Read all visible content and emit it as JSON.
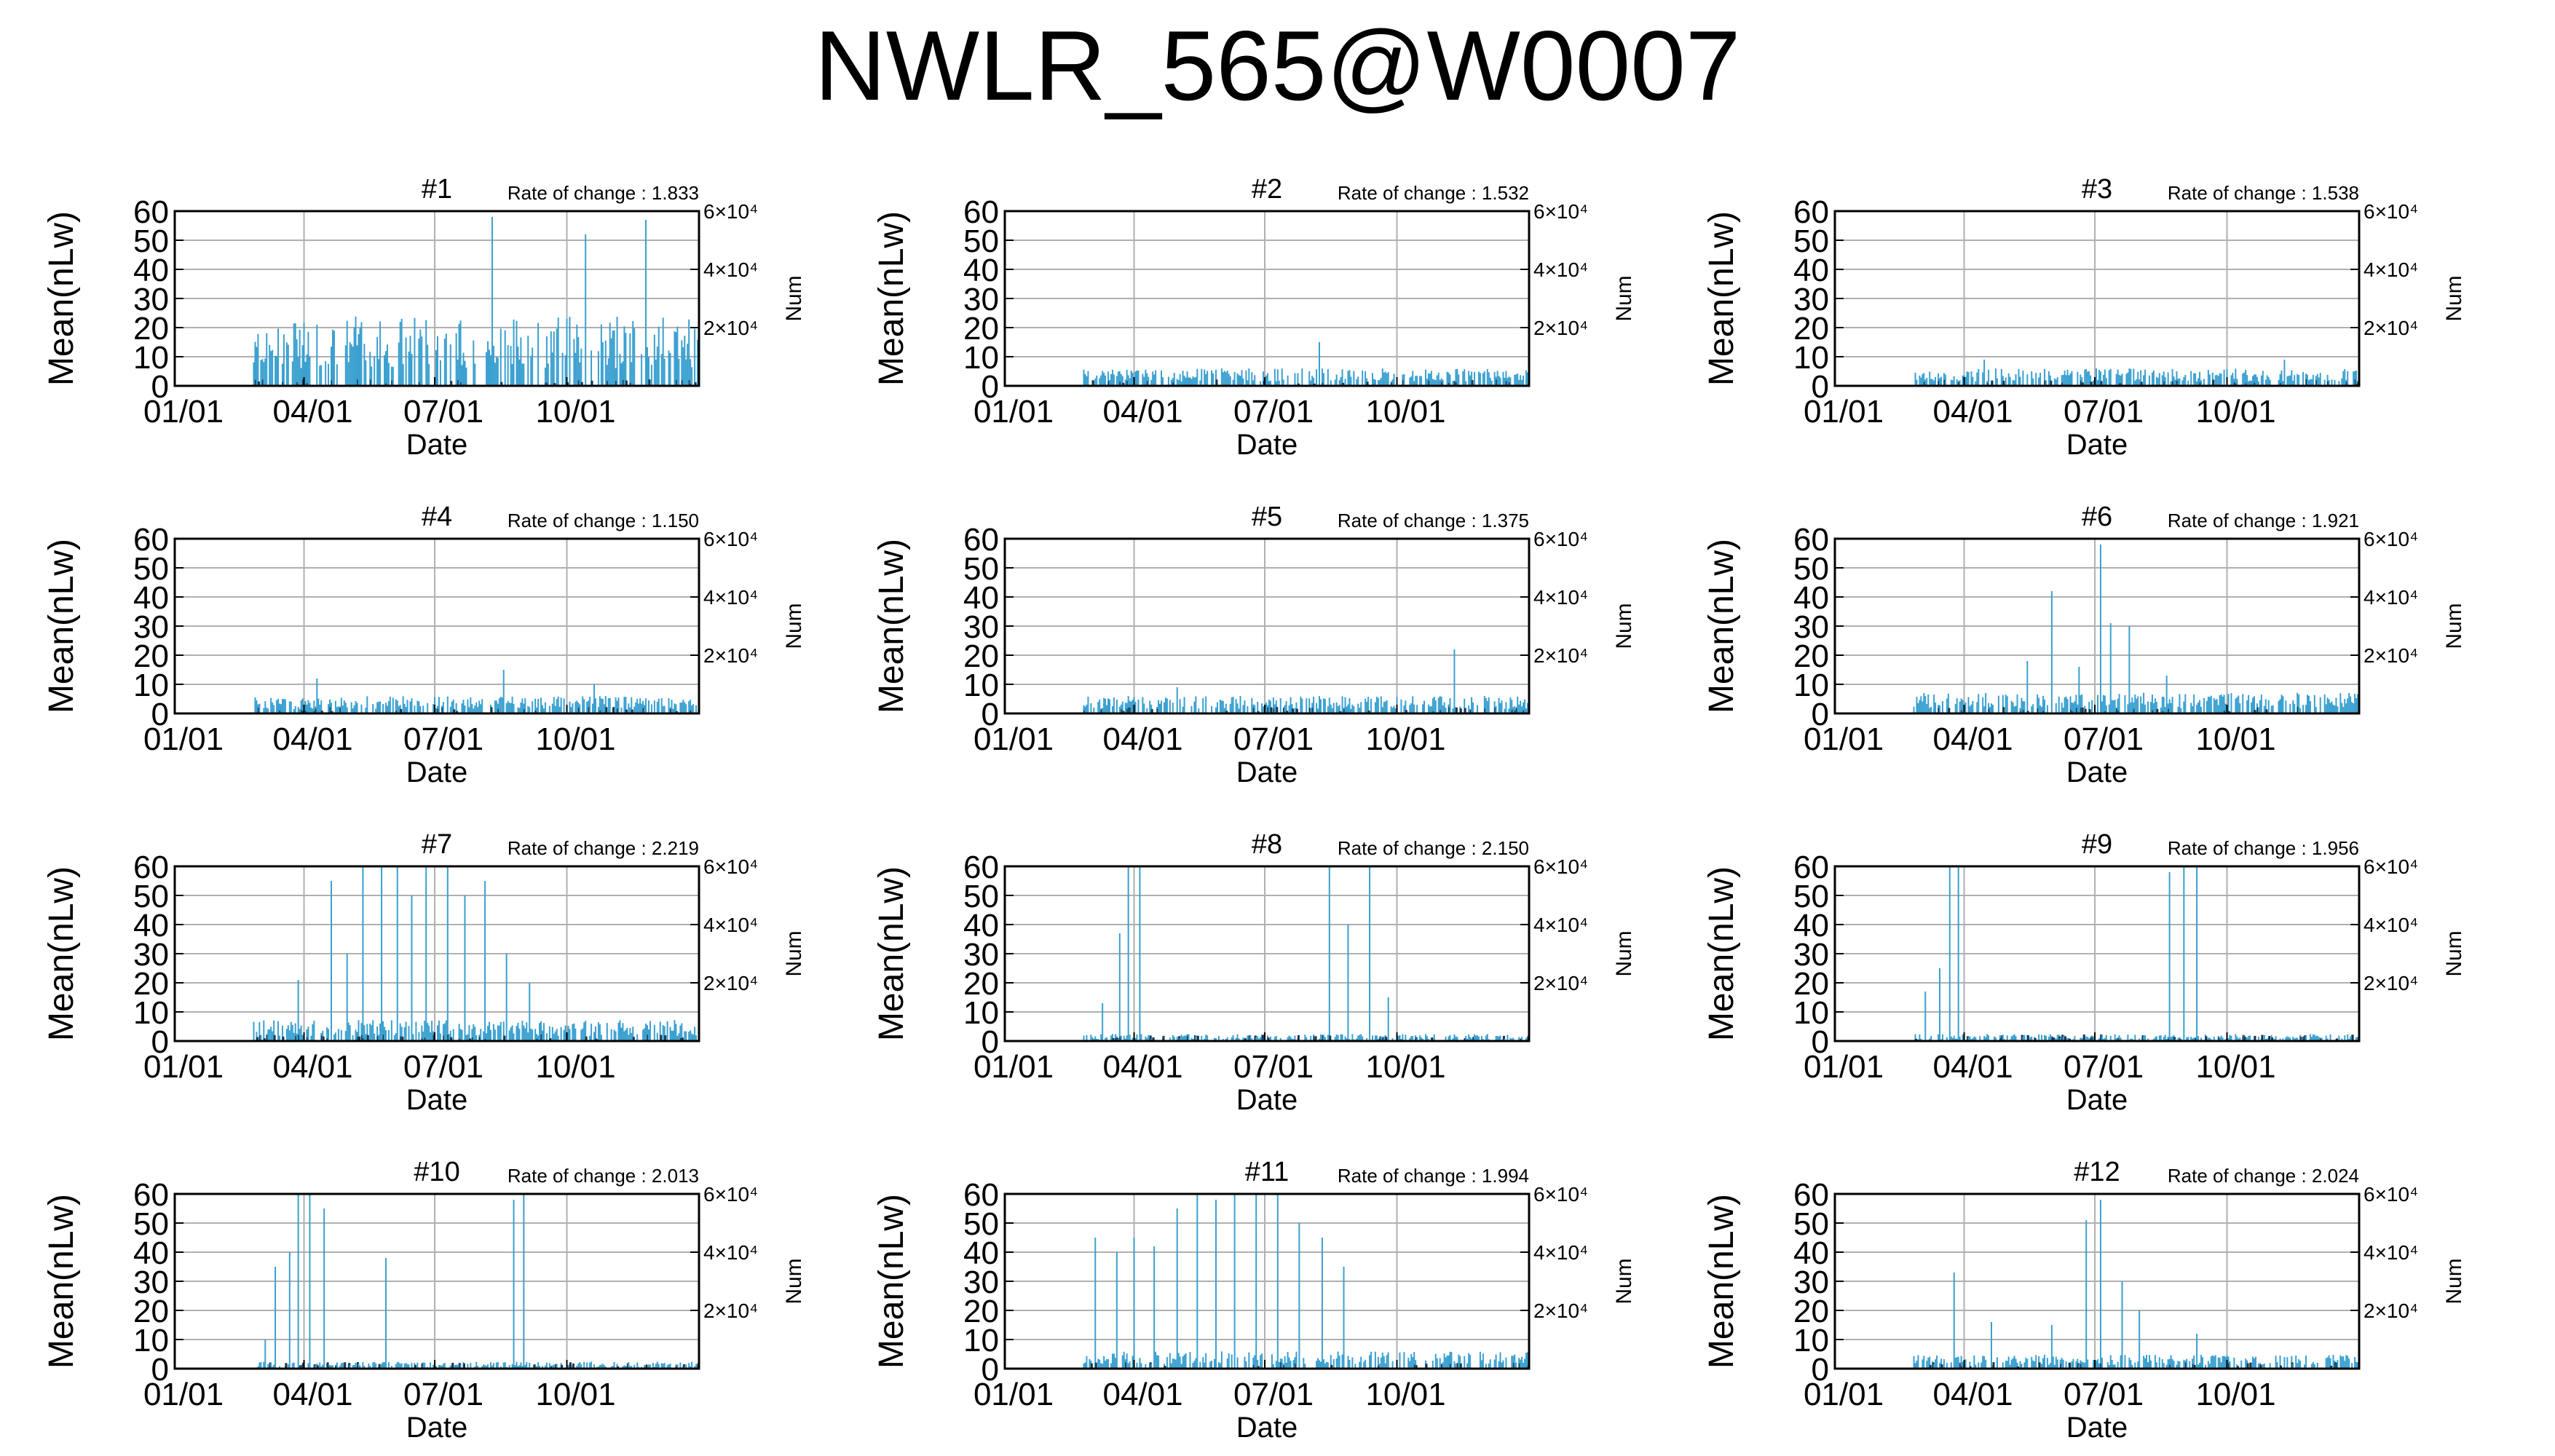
{
  "title": "NWLR_565@W0007",
  "chart_data": [
    {
      "type": "bar",
      "title": "#1",
      "rate_of_change": "Rate of change : 1.833",
      "xlabel": "Date",
      "ylabel": "Mean(nLw)",
      "ylabel_right": "Num",
      "x_ticks": [
        "01/01",
        "04/01",
        "07/01",
        "10/01"
      ],
      "y_ticks": [
        0,
        10,
        20,
        30,
        40,
        50,
        60
      ],
      "ylim": [
        0,
        60
      ],
      "right_ticks": [
        "2×10⁴",
        "4×10⁴",
        "6×10⁴"
      ],
      "grid": true,
      "data_start": "2021-02-25",
      "data_end": "2021-12-31",
      "typical_value": 20,
      "peaks": [
        {
          "date": "2021-08-10",
          "value": 58
        },
        {
          "date": "2021-10-14",
          "value": 52
        },
        {
          "date": "2021-11-25",
          "value": 57
        }
      ]
    },
    {
      "type": "bar",
      "title": "#2",
      "rate_of_change": "Rate of change : 1.532",
      "xlabel": "Date",
      "ylabel": "Mean(nLw)",
      "ylabel_right": "Num",
      "x_ticks": [
        "01/01",
        "04/01",
        "07/01",
        "10/01"
      ],
      "y_ticks": [
        0,
        10,
        20,
        30,
        40,
        50,
        60
      ],
      "ylim": [
        0,
        60
      ],
      "right_ticks": [
        "2×10⁴",
        "4×10⁴",
        "6×10⁴"
      ],
      "grid": true,
      "data_start": "2021-02-25",
      "data_end": "2021-12-31",
      "typical_value": 5,
      "peaks": [
        {
          "date": "2021-08-08",
          "value": 15
        }
      ]
    },
    {
      "type": "bar",
      "title": "#3",
      "rate_of_change": "Rate of change : 1.538",
      "xlabel": "Date",
      "ylabel": "Mean(nLw)",
      "ylabel_right": "Num",
      "x_ticks": [
        "01/01",
        "04/01",
        "07/01",
        "10/01"
      ],
      "y_ticks": [
        0,
        10,
        20,
        30,
        40,
        50,
        60
      ],
      "ylim": [
        0,
        60
      ],
      "right_ticks": [
        "2×10⁴",
        "4×10⁴",
        "6×10⁴"
      ],
      "grid": true,
      "data_start": "2021-02-25",
      "data_end": "2021-12-31",
      "typical_value": 5,
      "peaks": [
        {
          "date": "2021-04-15",
          "value": 9
        },
        {
          "date": "2021-11-10",
          "value": 9
        }
      ]
    },
    {
      "type": "bar",
      "title": "#4",
      "rate_of_change": "Rate of change : 1.150",
      "xlabel": "Date",
      "ylabel": "Mean(nLw)",
      "ylabel_right": "Num",
      "x_ticks": [
        "01/01",
        "04/01",
        "07/01",
        "10/01"
      ],
      "y_ticks": [
        0,
        10,
        20,
        30,
        40,
        50,
        60
      ],
      "ylim": [
        0,
        60
      ],
      "right_ticks": [
        "2×10⁴",
        "4×10⁴",
        "6×10⁴"
      ],
      "grid": true,
      "data_start": "2021-02-25",
      "data_end": "2021-12-31",
      "typical_value": 5,
      "peaks": [
        {
          "date": "2021-04-10",
          "value": 12
        },
        {
          "date": "2021-08-18",
          "value": 15
        },
        {
          "date": "2021-10-20",
          "value": 10
        }
      ]
    },
    {
      "type": "bar",
      "title": "#5",
      "rate_of_change": "Rate of change : 1.375",
      "xlabel": "Date",
      "ylabel": "Mean(nLw)",
      "ylabel_right": "Num",
      "x_ticks": [
        "01/01",
        "04/01",
        "07/01",
        "10/01"
      ],
      "y_ticks": [
        0,
        10,
        20,
        30,
        40,
        50,
        60
      ],
      "ylim": [
        0,
        60
      ],
      "right_ticks": [
        "2×10⁴",
        "4×10⁴",
        "6×10⁴"
      ],
      "grid": true,
      "data_start": "2021-02-25",
      "data_end": "2021-12-31",
      "typical_value": 5,
      "peaks": [
        {
          "date": "2021-05-01",
          "value": 9
        },
        {
          "date": "2021-11-10",
          "value": 22
        }
      ]
    },
    {
      "type": "bar",
      "title": "#6",
      "rate_of_change": "Rate of change : 1.921",
      "xlabel": "Date",
      "ylabel": "Mean(nLw)",
      "ylabel_right": "Num",
      "x_ticks": [
        "01/01",
        "04/01",
        "07/01",
        "10/01"
      ],
      "y_ticks": [
        0,
        10,
        20,
        30,
        40,
        50,
        60
      ],
      "ylim": [
        0,
        60
      ],
      "right_ticks": [
        "2×10⁴",
        "4×10⁴",
        "6×10⁴"
      ],
      "grid": true,
      "data_start": "2021-02-25",
      "data_end": "2021-12-31",
      "typical_value": 6,
      "peaks": [
        {
          "date": "2021-05-15",
          "value": 18
        },
        {
          "date": "2021-06-01",
          "value": 42
        },
        {
          "date": "2021-06-20",
          "value": 16
        },
        {
          "date": "2021-07-05",
          "value": 58
        },
        {
          "date": "2021-07-12",
          "value": 31
        },
        {
          "date": "2021-07-25",
          "value": 30
        },
        {
          "date": "2021-08-20",
          "value": 13
        }
      ]
    },
    {
      "type": "bar",
      "title": "#7",
      "rate_of_change": "Rate of change : 2.219",
      "xlabel": "Date",
      "ylabel": "Mean(nLw)",
      "ylabel_right": "Num",
      "x_ticks": [
        "01/01",
        "04/01",
        "07/01",
        "10/01"
      ],
      "y_ticks": [
        0,
        10,
        20,
        30,
        40,
        50,
        60
      ],
      "ylim": [
        0,
        60
      ],
      "right_ticks": [
        "2×10⁴",
        "4×10⁴",
        "6×10⁴"
      ],
      "grid": true,
      "data_start": "2021-02-25",
      "data_end": "2021-12-31",
      "typical_value": 6,
      "peaks": [
        {
          "date": "2021-03-28",
          "value": 21
        },
        {
          "date": "2021-04-20",
          "value": 55
        },
        {
          "date": "2021-05-01",
          "value": 30
        },
        {
          "date": "2021-05-12",
          "value": 60
        },
        {
          "date": "2021-05-25",
          "value": 60
        },
        {
          "date": "2021-06-05",
          "value": 60
        },
        {
          "date": "2021-06-15",
          "value": 50
        },
        {
          "date": "2021-06-25",
          "value": 60
        },
        {
          "date": "2021-07-10",
          "value": 60
        },
        {
          "date": "2021-07-22",
          "value": 50
        },
        {
          "date": "2021-08-05",
          "value": 55
        },
        {
          "date": "2021-08-20",
          "value": 30
        },
        {
          "date": "2021-09-05",
          "value": 20
        }
      ]
    },
    {
      "type": "bar",
      "title": "#8",
      "rate_of_change": "Rate of change : 2.150",
      "xlabel": "Date",
      "ylabel": "Mean(nLw)",
      "ylabel_right": "Num",
      "x_ticks": [
        "01/01",
        "04/01",
        "07/01",
        "10/01"
      ],
      "y_ticks": [
        0,
        10,
        20,
        30,
        40,
        50,
        60
      ],
      "ylim": [
        0,
        60
      ],
      "right_ticks": [
        "2×10⁴",
        "4×10⁴",
        "6×10⁴"
      ],
      "grid": true,
      "data_start": "2021-02-25",
      "data_end": "2021-12-31",
      "typical_value": 2,
      "peaks": [
        {
          "date": "2021-03-10",
          "value": 13
        },
        {
          "date": "2021-03-22",
          "value": 37
        },
        {
          "date": "2021-03-28",
          "value": 60
        },
        {
          "date": "2021-04-05",
          "value": 60
        },
        {
          "date": "2021-08-15",
          "value": 60
        },
        {
          "date": "2021-08-28",
          "value": 40
        },
        {
          "date": "2021-09-12",
          "value": 60
        },
        {
          "date": "2021-09-25",
          "value": 15
        }
      ]
    },
    {
      "type": "bar",
      "title": "#9",
      "rate_of_change": "Rate of change : 1.956",
      "xlabel": "Date",
      "ylabel": "Mean(nLw)",
      "ylabel_right": "Num",
      "x_ticks": [
        "01/01",
        "04/01",
        "07/01",
        "10/01"
      ],
      "y_ticks": [
        0,
        10,
        20,
        30,
        40,
        50,
        60
      ],
      "ylim": [
        0,
        60
      ],
      "right_ticks": [
        "2×10⁴",
        "4×10⁴",
        "6×10⁴"
      ],
      "grid": true,
      "data_start": "2021-02-25",
      "data_end": "2021-12-31",
      "typical_value": 2,
      "peaks": [
        {
          "date": "2021-03-05",
          "value": 17
        },
        {
          "date": "2021-03-15",
          "value": 25
        },
        {
          "date": "2021-03-22",
          "value": 60
        },
        {
          "date": "2021-03-28",
          "value": 60
        },
        {
          "date": "2021-08-22",
          "value": 58
        },
        {
          "date": "2021-09-01",
          "value": 60
        },
        {
          "date": "2021-09-10",
          "value": 60
        }
      ]
    },
    {
      "type": "bar",
      "title": "#10",
      "rate_of_change": "Rate of change : 2.013",
      "xlabel": "Date",
      "ylabel": "Mean(nLw)",
      "ylabel_right": "Num",
      "x_ticks": [
        "01/01",
        "04/01",
        "07/01",
        "10/01"
      ],
      "y_ticks": [
        0,
        10,
        20,
        30,
        40,
        50,
        60
      ],
      "ylim": [
        0,
        60
      ],
      "right_ticks": [
        "2×10⁴",
        "4×10⁴",
        "6×10⁴"
      ],
      "grid": true,
      "data_start": "2021-02-25",
      "data_end": "2021-12-31",
      "typical_value": 2,
      "peaks": [
        {
          "date": "2021-03-05",
          "value": 10
        },
        {
          "date": "2021-03-12",
          "value": 35
        },
        {
          "date": "2021-03-22",
          "value": 40
        },
        {
          "date": "2021-03-28",
          "value": 60
        },
        {
          "date": "2021-04-05",
          "value": 60
        },
        {
          "date": "2021-04-15",
          "value": 55
        },
        {
          "date": "2021-05-28",
          "value": 38
        },
        {
          "date": "2021-08-25",
          "value": 58
        },
        {
          "date": "2021-09-01",
          "value": 60
        }
      ]
    },
    {
      "type": "bar",
      "title": "#11",
      "rate_of_change": "Rate of change : 1.994",
      "xlabel": "Date",
      "ylabel": "Mean(nLw)",
      "ylabel_right": "Num",
      "x_ticks": [
        "01/01",
        "04/01",
        "07/01",
        "10/01"
      ],
      "y_ticks": [
        0,
        10,
        20,
        30,
        40,
        50,
        60
      ],
      "ylim": [
        0,
        60
      ],
      "right_ticks": [
        "2×10⁴",
        "4×10⁴",
        "6×10⁴"
      ],
      "grid": true,
      "data_start": "2021-02-25",
      "data_end": "2021-12-31",
      "typical_value": 5,
      "peaks": [
        {
          "date": "2021-03-05",
          "value": 45
        },
        {
          "date": "2021-03-20",
          "value": 40
        },
        {
          "date": "2021-04-01",
          "value": 45
        },
        {
          "date": "2021-04-15",
          "value": 42
        },
        {
          "date": "2021-05-01",
          "value": 55
        },
        {
          "date": "2021-05-15",
          "value": 60
        },
        {
          "date": "2021-05-28",
          "value": 58
        },
        {
          "date": "2021-06-10",
          "value": 60
        },
        {
          "date": "2021-06-25",
          "value": 60
        },
        {
          "date": "2021-07-10",
          "value": 60
        },
        {
          "date": "2021-07-25",
          "value": 50
        },
        {
          "date": "2021-08-10",
          "value": 45
        },
        {
          "date": "2021-08-25",
          "value": 35
        }
      ]
    },
    {
      "type": "bar",
      "title": "#12",
      "rate_of_change": "Rate of change : 2.024",
      "xlabel": "Date",
      "ylabel": "Mean(nLw)",
      "ylabel_right": "Num",
      "x_ticks": [
        "01/01",
        "04/01",
        "07/01",
        "10/01"
      ],
      "y_ticks": [
        0,
        10,
        20,
        30,
        40,
        50,
        60
      ],
      "ylim": [
        0,
        60
      ],
      "right_ticks": [
        "2×10⁴",
        "4×10⁴",
        "6×10⁴"
      ],
      "grid": true,
      "data_start": "2021-02-25",
      "data_end": "2021-12-31",
      "typical_value": 4,
      "peaks": [
        {
          "date": "2021-03-25",
          "value": 33
        },
        {
          "date": "2021-04-20",
          "value": 16
        },
        {
          "date": "2021-06-01",
          "value": 15
        },
        {
          "date": "2021-06-25",
          "value": 51
        },
        {
          "date": "2021-07-05",
          "value": 58
        },
        {
          "date": "2021-07-20",
          "value": 30
        },
        {
          "date": "2021-08-01",
          "value": 20
        },
        {
          "date": "2021-09-10",
          "value": 12
        }
      ]
    }
  ]
}
